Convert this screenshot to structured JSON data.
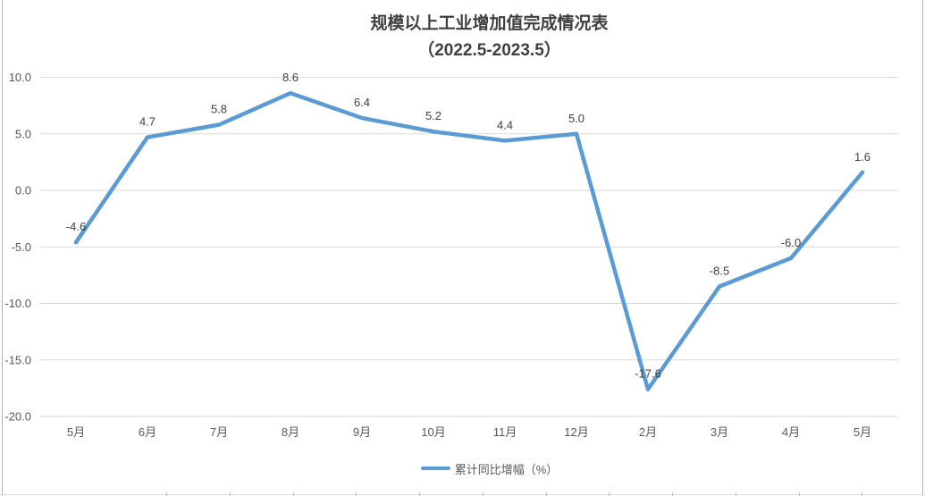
{
  "header": {
    "title_line1": "规模以上工业增加值完成情况表",
    "title_line2": "（2022.5-2023.5）"
  },
  "chart_data": {
    "type": "line",
    "title": "规模以上工业增加值完成情况表（2022.5-2023.5）",
    "categories": [
      "5月",
      "6月",
      "7月",
      "8月",
      "9月",
      "10月",
      "11月",
      "12月",
      "2月",
      "3月",
      "4月",
      "5月"
    ],
    "series": [
      {
        "name": "累计同比增幅（%）",
        "values": [
          -4.6,
          4.7,
          5.8,
          8.6,
          6.4,
          5.2,
          4.4,
          5.0,
          -17.6,
          -8.5,
          -6.0,
          1.6
        ]
      }
    ],
    "ylim": [
      -20,
      10
    ],
    "ytick_step": 5,
    "ytick_labels": [
      "10.0",
      "5.0",
      "0.0",
      "-5.0",
      "-10.0",
      "-15.0",
      "-20.0"
    ],
    "grid": "horizontal",
    "legend_position": "bottom",
    "data_labels": "above",
    "label_decimals": 1
  },
  "colors": {
    "line": "#5B9BD5",
    "gridline": "#D9D9D9",
    "axis_text": "#595959",
    "data_label_text": "#404040",
    "title_text": "#404040",
    "sheet_border": "#b3b3b3"
  }
}
